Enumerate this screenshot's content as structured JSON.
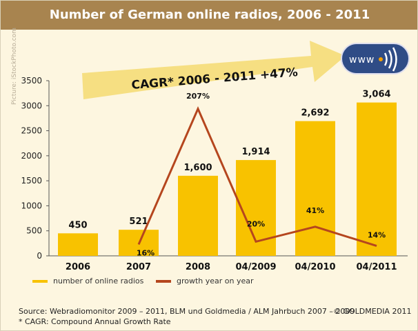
{
  "title": "Number of German online radios, 2006 - 2011",
  "picture_credit": "Picture: iStockPhoto.com",
  "cagr_label": "CAGR* 2006 - 2011  +47%",
  "logo_text": "www",
  "colors": {
    "bars": "#f8c200",
    "line": "#b5461e",
    "title_bar": "#a8844f",
    "background": "#fdf6e0"
  },
  "chart_data": {
    "type": "bar+line",
    "categories": [
      "2006",
      "2007",
      "2008",
      "04/2009",
      "04/2010",
      "04/2011"
    ],
    "series": [
      {
        "name": "number of online radios",
        "type": "bar",
        "values": [
          450,
          521,
          1600,
          1914,
          2692,
          3064
        ],
        "labels": [
          "450",
          "521",
          "1,600",
          "1,914",
          "2,692",
          "3,064"
        ]
      },
      {
        "name": "growth year on year",
        "type": "line",
        "values": [
          null,
          16,
          207,
          20,
          41,
          14
        ],
        "labels": [
          "",
          "16%",
          "207%",
          "20%",
          "41%",
          "14%"
        ]
      }
    ],
    "yticks": [
      "0",
      "500",
      "1000",
      "1500",
      "2000",
      "2500",
      "3000",
      "3500"
    ],
    "ylim": [
      0,
      3500
    ],
    "grid": false,
    "legend": "bottom"
  },
  "source": "Source: Webradiomonitor 2009 – 2011, BLM und Goldmedia / ALM Jahrbuch 2007 – 2009",
  "copyright": "© GOLDMEDIA 2011",
  "footnote": "* CAGR: Compound Annual Growth Rate"
}
